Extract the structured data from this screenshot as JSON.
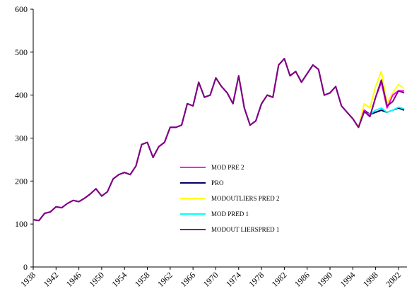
{
  "chart_data": {
    "type": "line",
    "x": [
      1938,
      1939,
      1940,
      1941,
      1942,
      1943,
      1944,
      1945,
      1946,
      1947,
      1948,
      1949,
      1950,
      1951,
      1952,
      1953,
      1954,
      1955,
      1956,
      1957,
      1958,
      1959,
      1960,
      1961,
      1962,
      1963,
      1964,
      1965,
      1966,
      1967,
      1968,
      1969,
      1970,
      1971,
      1972,
      1973,
      1974,
      1975,
      1976,
      1977,
      1978,
      1979,
      1980,
      1981,
      1982,
      1983,
      1984,
      1985,
      1986,
      1987,
      1988,
      1989,
      1990,
      1991,
      1992,
      1993,
      1994,
      1995,
      1996,
      1997,
      1998,
      1999,
      2000,
      2001,
      2002,
      2003
    ],
    "xlim": [
      1938,
      2003
    ],
    "xticks": [
      1938,
      1942,
      1946,
      1950,
      1954,
      1958,
      1962,
      1966,
      1970,
      1974,
      1978,
      1982,
      1986,
      1990,
      1994,
      1998,
      2002
    ],
    "ylim": [
      0,
      600
    ],
    "yticks": [
      0,
      100,
      200,
      300,
      400,
      500,
      600
    ],
    "grid": false,
    "legend": "center",
    "series": [
      {
        "name": "MOD PRE 2",
        "color": "#ff00ff",
        "values": [
          110,
          108,
          125,
          128,
          140,
          138,
          148,
          155,
          152,
          160,
          170,
          182,
          165,
          175,
          205,
          215,
          220,
          215,
          235,
          285,
          290,
          255,
          280,
          290,
          325,
          325,
          330,
          380,
          375,
          430,
          395,
          400,
          440,
          420,
          405,
          380,
          445,
          370,
          330,
          340,
          380,
          400,
          395,
          470,
          485,
          445,
          455,
          430,
          450,
          470,
          460,
          400,
          405,
          420,
          375,
          360,
          345,
          325,
          365,
          350,
          395,
          430,
          370,
          400,
          410,
          410
        ]
      },
      {
        "name": "PRO",
        "color": "#000066",
        "values": [
          110,
          108,
          125,
          128,
          140,
          138,
          148,
          155,
          152,
          160,
          170,
          182,
          165,
          175,
          205,
          215,
          220,
          215,
          235,
          285,
          290,
          255,
          280,
          290,
          325,
          325,
          330,
          380,
          375,
          430,
          395,
          400,
          440,
          420,
          405,
          380,
          445,
          370,
          330,
          340,
          380,
          400,
          395,
          470,
          485,
          445,
          455,
          430,
          450,
          470,
          460,
          400,
          405,
          420,
          375,
          360,
          345,
          325,
          365,
          355,
          360,
          365,
          360,
          365,
          370,
          365
        ]
      },
      {
        "name": "MODOUTLIERS PRED 2",
        "color": "#ffff00",
        "values": [
          110,
          108,
          125,
          128,
          140,
          138,
          148,
          155,
          152,
          160,
          170,
          182,
          165,
          175,
          205,
          215,
          220,
          215,
          235,
          285,
          290,
          255,
          280,
          290,
          325,
          325,
          330,
          380,
          375,
          430,
          395,
          400,
          440,
          420,
          405,
          380,
          445,
          370,
          330,
          340,
          380,
          400,
          395,
          470,
          485,
          445,
          455,
          430,
          450,
          470,
          460,
          400,
          405,
          420,
          375,
          360,
          345,
          325,
          380,
          370,
          420,
          455,
          380,
          405,
          425,
          415
        ]
      },
      {
        "name": "MOD PRED 1",
        "color": "#00ffff",
        "values": [
          110,
          108,
          125,
          128,
          140,
          138,
          148,
          155,
          152,
          160,
          170,
          182,
          165,
          175,
          205,
          215,
          220,
          215,
          235,
          285,
          290,
          255,
          280,
          290,
          325,
          325,
          330,
          380,
          375,
          430,
          395,
          400,
          440,
          420,
          405,
          380,
          445,
          370,
          330,
          340,
          380,
          400,
          395,
          470,
          485,
          445,
          455,
          430,
          450,
          470,
          460,
          400,
          405,
          420,
          375,
          360,
          345,
          325,
          360,
          355,
          365,
          370,
          360,
          365,
          372,
          368
        ]
      },
      {
        "name": "MODOUT LIERSPRED 1",
        "color": "#800080",
        "values": [
          110,
          108,
          125,
          128,
          140,
          138,
          148,
          155,
          152,
          160,
          170,
          182,
          165,
          175,
          205,
          215,
          220,
          215,
          235,
          285,
          290,
          255,
          280,
          290,
          325,
          325,
          330,
          380,
          375,
          430,
          395,
          400,
          440,
          420,
          405,
          380,
          445,
          370,
          330,
          340,
          380,
          400,
          395,
          470,
          485,
          445,
          455,
          430,
          450,
          470,
          460,
          400,
          405,
          420,
          375,
          360,
          345,
          325,
          362,
          350,
          395,
          435,
          375,
          385,
          410,
          405
        ]
      }
    ]
  }
}
